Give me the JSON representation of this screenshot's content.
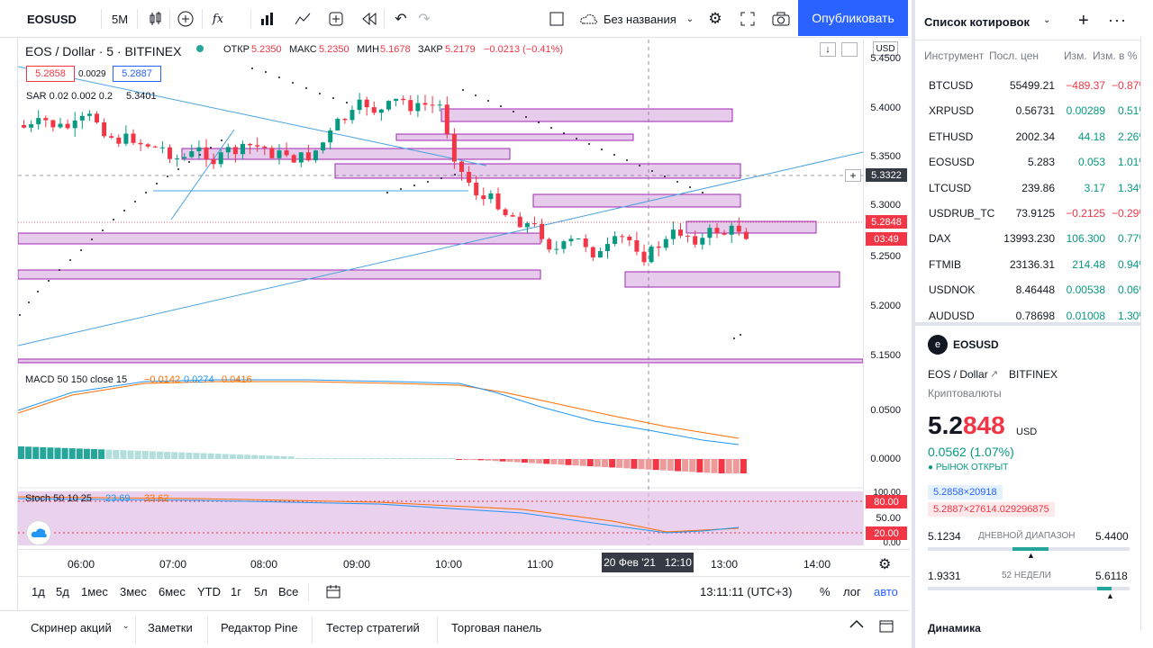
{
  "toolbar": {
    "symbol": "EOSUSD",
    "interval": "5M",
    "layout_name": "Без названия",
    "publish_label": "Опубликовать"
  },
  "legend": {
    "title": "EOS / Dollar · 5 · BITFINEX",
    "o_label": "ОТКР",
    "o": "5.2350",
    "h_label": "МАКС",
    "h": "5.2350",
    "l_label": "МИН",
    "l": "5.1678",
    "c_label": "ЗАКР",
    "c": "5.2179",
    "chg": "−0.0213 (−0.41%)",
    "bid": "5.2858",
    "spread": "0.0029",
    "ask": "5.2887",
    "sar": "SAR 0.02 0.002 0.2",
    "sar_val": "5.3401",
    "usd_badge": "USD"
  },
  "indicators": {
    "macd_label": "MACD 50 150 close 15",
    "macd_v1": "−0.0142",
    "macd_v2": "0.0274",
    "macd_v3": "0.0416",
    "stoch_label": "Stoch 50 10 25",
    "stoch_v1": "23.69",
    "stoch_v2": "33.62"
  },
  "price_axis": {
    "labels": [
      "5.4500",
      "5.4000",
      "5.3500",
      "5.3000",
      "5.2500",
      "5.2000",
      "5.1500"
    ],
    "macd_labels": [
      "0.0500",
      "0.0000"
    ],
    "stoch_labels": [
      "100.00",
      "50.00",
      "0.00"
    ],
    "cross_price": "5.3322",
    "last_price": "5.2848",
    "countdown": "03:49",
    "stoch_hi": "80.00",
    "stoch_lo": "20.00"
  },
  "time_axis": {
    "labels": [
      "06:00",
      "07:00",
      "08:00",
      "09:00",
      "10:00",
      "11:00",
      "13:00",
      "14:00"
    ],
    "crosshair": "20 Фев '21   12:10"
  },
  "range_bar": {
    "buttons": [
      "1д",
      "5д",
      "1мес",
      "3мес",
      "6мес",
      "YTD",
      "1г",
      "5л",
      "Все"
    ],
    "time": "13:11:11 (UTC+3)",
    "pct": "%",
    "log": "лог",
    "auto": "авто"
  },
  "bottom_tabs": [
    "Скринер акций",
    "Заметки",
    "Редактор Pine",
    "Тестер стратегий",
    "Торговая панель"
  ],
  "watchlist": {
    "title": "Список котировок",
    "col_symbol": "Инструмент",
    "col_last": "Посл. цен",
    "col_chg": "Изм.",
    "col_chgp": "Изм. в %",
    "rows": [
      {
        "sym": "BTCUSD",
        "last": "55499.21",
        "chg": "−489.37",
        "chgp": "−0.87%",
        "dir": "down"
      },
      {
        "sym": "XRPUSD",
        "last": "0.56731",
        "chg": "0.00289",
        "chgp": "0.51%",
        "dir": "up"
      },
      {
        "sym": "ETHUSD",
        "last": "2002.34",
        "chg": "44.18",
        "chgp": "2.26%",
        "dir": "up"
      },
      {
        "sym": "EOSUSD",
        "last": "5.283",
        "chg": "0.053",
        "chgp": "1.01%",
        "dir": "up"
      },
      {
        "sym": "LTCUSD",
        "last": "239.86",
        "chg": "3.17",
        "chgp": "1.34%",
        "dir": "up"
      },
      {
        "sym": "USDRUB_TC",
        "last": "73.9125",
        "chg": "−0.2125",
        "chgp": "−0.29%",
        "dir": "down"
      },
      {
        "sym": "DAX",
        "last": "13993.230",
        "chg": "106.300",
        "chgp": "0.77%",
        "dir": "up"
      },
      {
        "sym": "FTMIB",
        "last": "23136.31",
        "chg": "214.48",
        "chgp": "0.94%",
        "dir": "up"
      },
      {
        "sym": "USDNOK",
        "last": "8.46448",
        "chg": "0.00538",
        "chgp": "0.06%",
        "dir": "up"
      },
      {
        "sym": "AUDUSD",
        "last": "0.78698",
        "chg": "0.01008",
        "chgp": "1.30%",
        "dir": "up"
      }
    ]
  },
  "details": {
    "symbol": "EOSUSD",
    "name": "EOS / Dollar",
    "exchange": "BITFINEX",
    "category": "Криптовалюты",
    "price_main": "5.2",
    "price_frac": "848",
    "currency": "USD",
    "change": "0.0562 (1.07%)",
    "status": "РЫНОК ОТКРЫТ",
    "bid": "5.2858×20918",
    "ask": "5.2887×27614.029296875",
    "day_low": "5.1234",
    "day_label": "ДНЕВНОЙ ДИАПАЗОН",
    "day_high": "5.4400",
    "wk_low": "1.9331",
    "wk_label": "52 НЕДЕЛИ",
    "wk_high": "5.6118",
    "dynamics": "Динамика"
  },
  "colors": {
    "up": "#089981",
    "down": "#f23645",
    "accent": "#2962ff",
    "zone": "#e1bee7"
  }
}
